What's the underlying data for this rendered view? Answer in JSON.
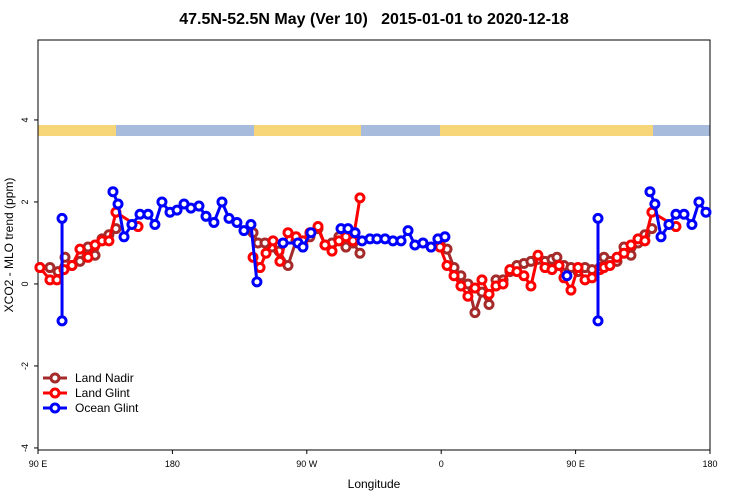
{
  "chart_data": {
    "type": "line",
    "title": "47.5N-52.5N May (Ver 10)   2015-01-01 to 2020-12-18",
    "x_label": "Longitude",
    "y_label": "XCO2 - MLO trend (ppm)",
    "xlim": [
      90,
      540
    ],
    "ylim": [
      -4.05,
      5.95
    ],
    "xticks": [
      {
        "value": 90,
        "label": "90 E"
      },
      {
        "value": 180,
        "label": "180"
      },
      {
        "value": 270,
        "label": "90 W"
      },
      {
        "value": 360,
        "label": "0"
      },
      {
        "value": 450,
        "label": "90 E"
      },
      {
        "value": 540,
        "label": "180"
      }
    ],
    "yticks": [
      -4,
      -2,
      0,
      2,
      4
    ],
    "legend": "bottom-left",
    "series": [
      {
        "name": "Land Nadir",
        "color": "#a52a2a",
        "x": [
          91.3,
          98.0,
          103.4,
          108.1,
          112.8,
          118.1,
          123.5,
          128.2,
          132.9,
          137.5,
          142.2,
          null,
          234.0,
          237.3,
          242.0,
          246.7,
          251.4,
          257.4,
          262.8,
          267.4,
          272.1,
          277.5,
          282.2,
          286.9,
          291.5,
          296.2,
          300.9,
          305.6,
          null,
          359.2,
          363.9,
          368.6,
          373.2,
          377.9,
          382.6,
          387.3,
          392.0,
          396.7,
          401.4,
          406.0,
          410.7,
          415.4,
          420.1,
          424.8,
          429.5,
          434.2,
          437.5,
          442.2,
          446.9,
          451.6,
          456.3,
          461.0,
          466.3,
          469.0,
          473.0,
          477.7,
          482.4,
          487.1,
          491.8,
          496.4,
          501.1
        ],
        "values": [
          0.4,
          0.4,
          0.3,
          0.65,
          0.45,
          0.55,
          0.9,
          0.7,
          1.1,
          1.2,
          1.35,
          null,
          1.25,
          1.0,
          1.0,
          0.9,
          0.8,
          0.45,
          1.05,
          0.95,
          1.15,
          1.35,
          0.95,
          1.0,
          1.15,
          0.9,
          1.0,
          0.75,
          null,
          1.0,
          0.85,
          0.4,
          0.2,
          0,
          -0.7,
          -0.2,
          -0.5,
          0.1,
          0.1,
          0.3,
          0.45,
          0.5,
          0.55,
          0.6,
          0.55,
          0.6,
          0.65,
          0.45,
          0.4,
          0.3,
          0.4,
          0.35,
          0.4,
          0.65,
          0.55,
          0.55,
          0.9,
          0.7,
          1.0,
          1.2,
          1.35
        ]
      },
      {
        "name": "Land Glint",
        "color": "#ff0000",
        "x": [
          91.3,
          98.0,
          102.7,
          107.4,
          112.8,
          118.1,
          123.5,
          128.2,
          132.9,
          137.5,
          142.2,
          157.0,
          null,
          234.0,
          238.7,
          242.7,
          247.4,
          252.0,
          257.4,
          262.8,
          267.4,
          272.1,
          277.5,
          282.2,
          286.9,
          291.5,
          296.2,
          300.9,
          305.6,
          null,
          359.2,
          363.9,
          368.6,
          373.2,
          377.9,
          382.6,
          387.3,
          392.0,
          396.7,
          401.4,
          406.0,
          410.7,
          415.4,
          420.1,
          424.8,
          429.5,
          434.2,
          438.9,
          442.2,
          446.9,
          451.6,
          456.3,
          461.0,
          466.3,
          469.0,
          473.0,
          477.7,
          482.4,
          487.1,
          491.8,
          496.4,
          501.1,
          517.2
        ],
        "values": [
          0.4,
          0.1,
          0.1,
          0.35,
          0.45,
          0.85,
          0.65,
          0.95,
          1.05,
          1.05,
          1.75,
          1.4,
          null,
          0.65,
          0.4,
          0.75,
          1.05,
          0.55,
          1.25,
          1.15,
          1.05,
          1.25,
          1.4,
          0.95,
          0.8,
          1.05,
          1.15,
          1.05,
          2.1,
          null,
          0.9,
          0.45,
          0.2,
          -0.05,
          -0.3,
          -0.1,
          0.1,
          -0.25,
          -0.05,
          0,
          0.35,
          0.3,
          0.2,
          -0.05,
          0.7,
          0.4,
          0.35,
          0.45,
          0.15,
          -0.15,
          0.4,
          0.1,
          0.15,
          0.35,
          0.4,
          0.45,
          0.65,
          0.75,
          0.95,
          1.1,
          1.05,
          1.75,
          1.4
        ]
      },
      {
        "name": "Ocean Glint",
        "color": "#0000ff",
        "x": [
          106.1,
          106.1,
          null,
          140.2,
          143.6,
          147.6,
          152.9,
          158.3,
          163.7,
          168.3,
          173.0,
          178.4,
          183.1,
          187.8,
          192.4,
          197.8,
          202.5,
          207.8,
          213.2,
          217.9,
          223.2,
          227.9,
          232.6,
          236.6,
          null,
          254.1,
          264.1,
          267.4,
          272.8,
          null,
          292.9,
          297.6,
          302.3,
          307.0,
          312.3,
          317.0,
          322.4,
          327.7,
          333.1,
          337.8,
          342.4,
          347.8,
          353.2,
          357.8,
          362.5,
          null,
          444.2,
          null,
          465.0,
          465.0,
          null,
          499.8,
          503.1,
          507.2,
          512.5,
          517.2,
          522.6,
          527.9,
          532.6,
          537.3
        ],
        "values": [
          1.6,
          -0.9,
          null,
          2.25,
          1.95,
          1.15,
          1.45,
          1.7,
          1.7,
          1.45,
          2.0,
          1.75,
          1.8,
          1.95,
          1.85,
          1.9,
          1.65,
          1.5,
          2.0,
          1.6,
          1.5,
          1.3,
          1.45,
          0.05,
          null,
          1.0,
          1.0,
          0.9,
          1.25,
          null,
          1.35,
          1.35,
          1.25,
          1.05,
          1.1,
          1.1,
          1.1,
          1.05,
          1.05,
          1.3,
          0.95,
          1.0,
          0.9,
          1.1,
          1.15,
          null,
          0.2,
          null,
          1.6,
          -0.9,
          null,
          2.25,
          1.95,
          1.15,
          1.45,
          1.7,
          1.7,
          1.45,
          2.0,
          1.75
        ]
      }
    ]
  }
}
